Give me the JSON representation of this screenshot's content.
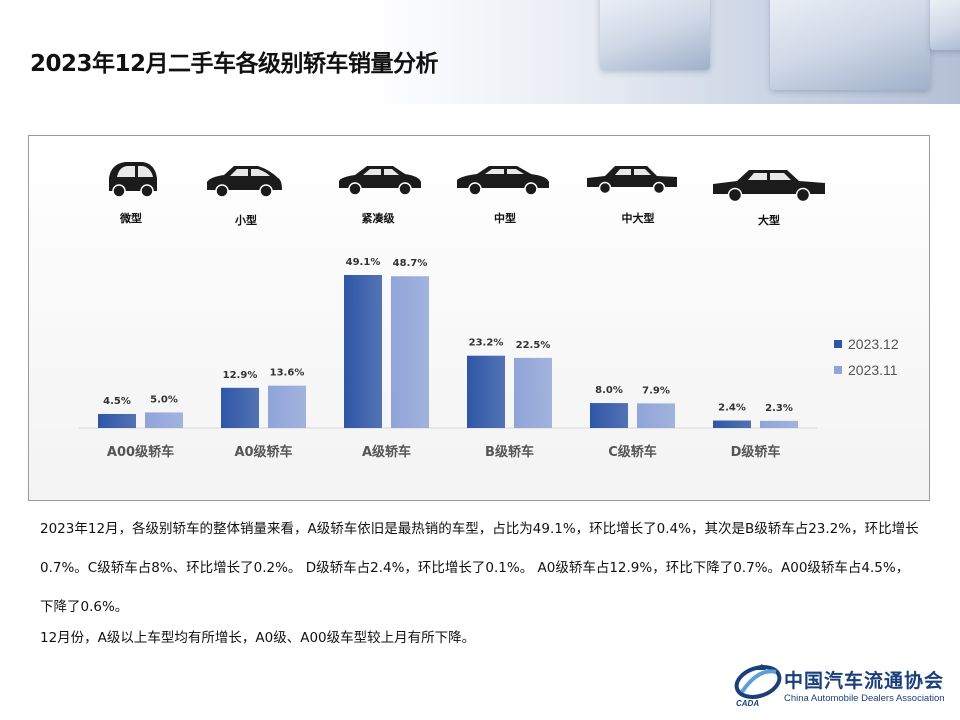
{
  "header": {
    "title": "2023年12月二手车各级别轿车销量分析"
  },
  "car_types": [
    {
      "label": "微型",
      "icon": "micro-car-icon"
    },
    {
      "label": "小型",
      "icon": "small-car-icon"
    },
    {
      "label": "紧凑级",
      "icon": "compact-car-icon"
    },
    {
      "label": "中型",
      "icon": "midsize-car-icon"
    },
    {
      "label": "中大型",
      "icon": "upper-midsize-car-icon"
    },
    {
      "label": "大型",
      "icon": "large-car-icon"
    }
  ],
  "chart_data": {
    "type": "bar",
    "categories": [
      "A00级轿车",
      "A0级轿车",
      "A级轿车",
      "B级轿车",
      "C级轿车",
      "D级轿车"
    ],
    "series": [
      {
        "name": "2023.12",
        "values": [
          4.5,
          12.9,
          49.1,
          23.2,
          8.0,
          2.4
        ],
        "labels": [
          "4.5%",
          "12.9%",
          "49.1%",
          "23.2%",
          "8.0%",
          "2.4%"
        ],
        "color": "#2f56a6"
      },
      {
        "name": "2023.11",
        "values": [
          5.0,
          13.6,
          48.7,
          22.5,
          7.9,
          2.3
        ],
        "labels": [
          "5.0%",
          "13.6%",
          "48.7%",
          "22.5%",
          "7.9%",
          "2.3%"
        ],
        "color": "#8fa4d8"
      }
    ],
    "unit": "%",
    "ylim": [
      0,
      55
    ],
    "grid": false,
    "legend_position": "right"
  },
  "body_text": {
    "paragraph1": "2023年12月，各级别轿车的整体销量来看，A级轿车依旧是最热销的车型，占比为49.1%，环比增长了0.4%，其次是B级轿车占23.2%，环比增长0.7%。C级轿车占8%、环比增长了0.2%。 D级轿车占2.4%，环比增长了0.1%。 A0级轿车占12.9%，环比下降了0.7%。A00级轿车占4.5%，下降了0.6%。",
    "paragraph2": "12月份，A级以上车型均有所增长，A0级、A00级车型较上月有所下降。"
  },
  "logo": {
    "name": "中国汽车流通协会",
    "english": "China Automobile Dealers Association",
    "abbr": "CADA"
  }
}
